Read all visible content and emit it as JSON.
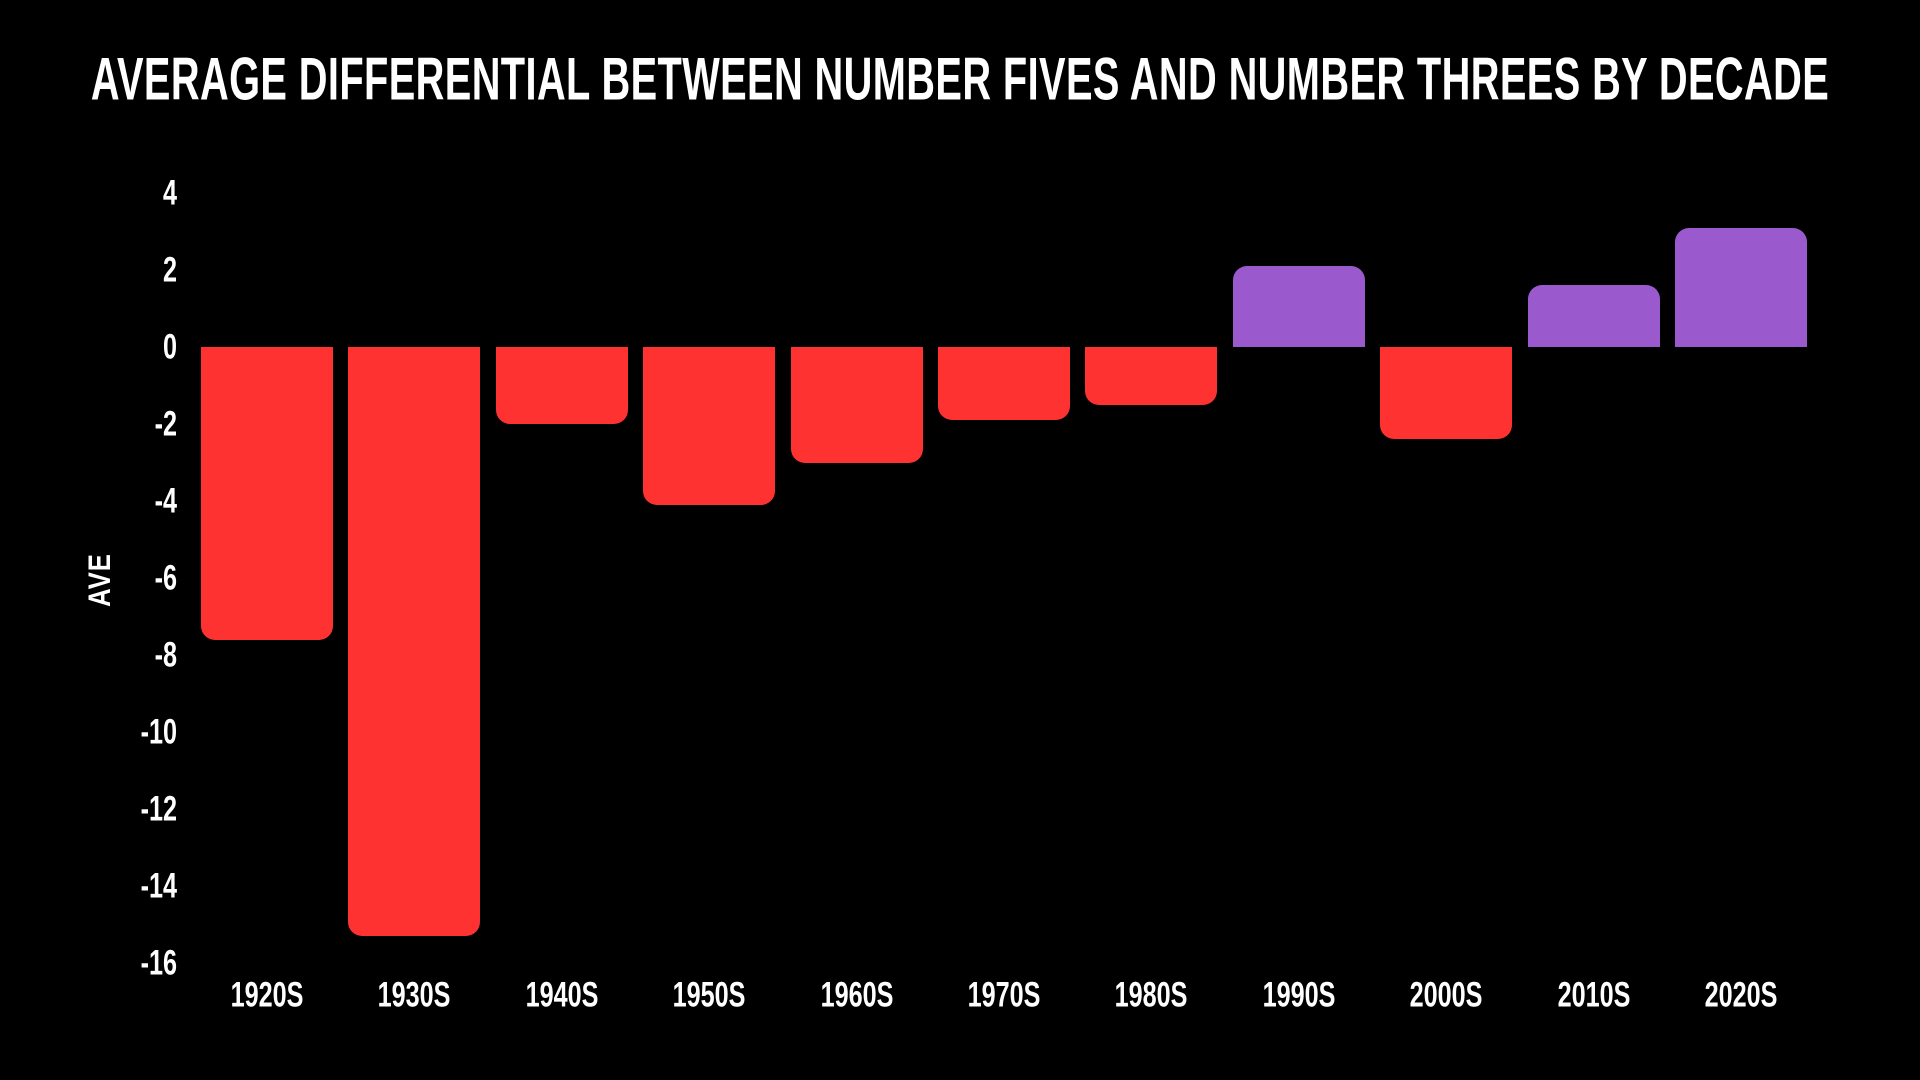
{
  "chart_data": {
    "type": "bar",
    "title": "AVERAGE DIFFERENTIAL BETWEEN NUMBER FIVES AND NUMBER THREES BY DECADE",
    "xlabel": "",
    "ylabel": "AVE",
    "categories": [
      "1920S",
      "1930S",
      "1940S",
      "1950S",
      "1960S",
      "1970S",
      "1980S",
      "1990S",
      "2000S",
      "2010S",
      "2020S"
    ],
    "values": [
      -7.6,
      -15.3,
      -2.0,
      -4.1,
      -3.0,
      -1.9,
      -1.5,
      2.1,
      -2.4,
      1.6,
      3.1
    ],
    "yticks": [
      4,
      2,
      0,
      -2,
      -4,
      -6,
      -8,
      -10,
      -12,
      -14,
      -16
    ],
    "ylim": [
      -16.5,
      4.5
    ],
    "grid": false,
    "legend_position": "none",
    "axis_lines": false,
    "colors": {
      "background": "#000000",
      "text": "#ffffff",
      "negative_bar": "#fe3230",
      "positive_bar": "#9a5acd"
    }
  }
}
